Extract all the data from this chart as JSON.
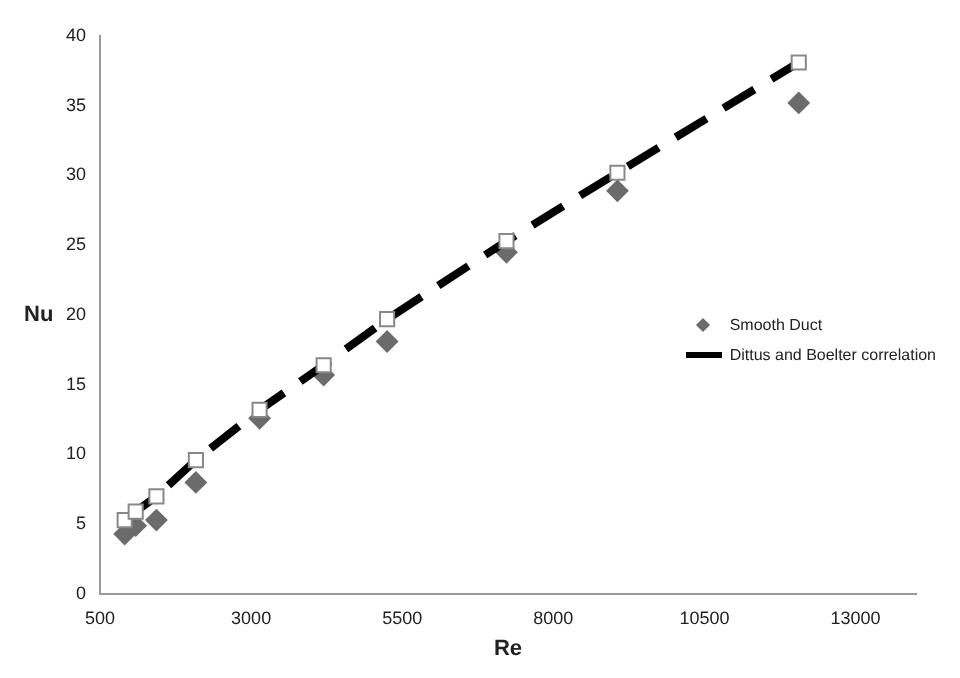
{
  "chart_data": {
    "type": "scatter",
    "xlabel": "Re",
    "ylabel": "Nu",
    "xlim": [
      500,
      14000
    ],
    "xticks": [
      500,
      3000,
      5500,
      8000,
      10500,
      13000
    ],
    "ylim": [
      0,
      40
    ],
    "yticks": [
      0,
      5,
      10,
      15,
      20,
      25,
      30,
      35,
      40
    ],
    "grid": false,
    "legend": "right",
    "series": [
      {
        "name": "Smooth Duct",
        "type": "scatter",
        "marker": "diamond",
        "color": "#6b6b6b",
        "x": [
          908,
          1090,
          1433,
          2086,
          3140,
          4200,
          5250,
          7225,
          9060,
          12060
        ],
        "values": [
          4.3,
          4.9,
          5.3,
          8.0,
          12.6,
          15.7,
          18.1,
          24.5,
          28.9,
          35.2
        ]
      },
      {
        "name": "Dittus and Boelter correlation",
        "type": "line",
        "marker": "square",
        "line_style": "dashed",
        "color": "#000000",
        "x": [
          908,
          1090,
          1433,
          2086,
          3140,
          4200,
          5250,
          7225,
          9060,
          12060
        ],
        "values": [
          5.3,
          5.9,
          7.0,
          9.6,
          13.2,
          16.4,
          19.7,
          25.3,
          30.2,
          38.1
        ]
      }
    ]
  }
}
